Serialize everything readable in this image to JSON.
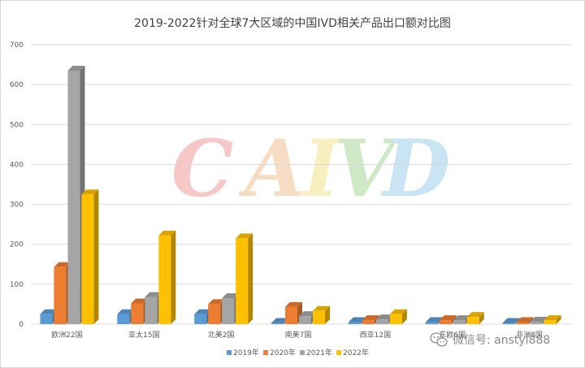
{
  "chart_data": {
    "type": "bar",
    "title": "2019-2022针对全球7大区域的中国IVD相关产品出口额对比图",
    "categories": [
      "欧洲22国",
      "亚太15国",
      "北美2国",
      "南美7国",
      "西亚12国",
      "东欧6国",
      "非洲8国"
    ],
    "series": [
      {
        "name": "2019年",
        "color": "#5B9BD5",
        "values": [
          25,
          25,
          25,
          3,
          5,
          5,
          3
        ]
      },
      {
        "name": "2020年",
        "color": "#ED7D31",
        "values": [
          143,
          52,
          50,
          43,
          10,
          10,
          5
        ]
      },
      {
        "name": "2021年",
        "color": "#A5A5A5",
        "values": [
          635,
          68,
          65,
          20,
          12,
          10,
          6
        ]
      },
      {
        "name": "2022年",
        "color": "#FFC000",
        "values": [
          325,
          222,
          215,
          33,
          25,
          18,
          10
        ]
      }
    ],
    "y_ticks": [
      0,
      100,
      200,
      300,
      400,
      500,
      600,
      700
    ],
    "ylim": [
      0,
      700
    ],
    "grid": true,
    "legend": "bottom"
  },
  "watermark": {
    "letters": [
      {
        "ch": "C",
        "color": "#f6c7c7"
      },
      {
        "ch": "A",
        "color": "#f7dcc4"
      },
      {
        "ch": "I",
        "color": "#f8efc0"
      },
      {
        "ch": "V",
        "color": "#cfe8c6"
      },
      {
        "ch": "D",
        "color": "#c9e4f3"
      }
    ]
  },
  "wechat": {
    "text": "微信号: anstyl888",
    "icon": "wechat-icon"
  }
}
